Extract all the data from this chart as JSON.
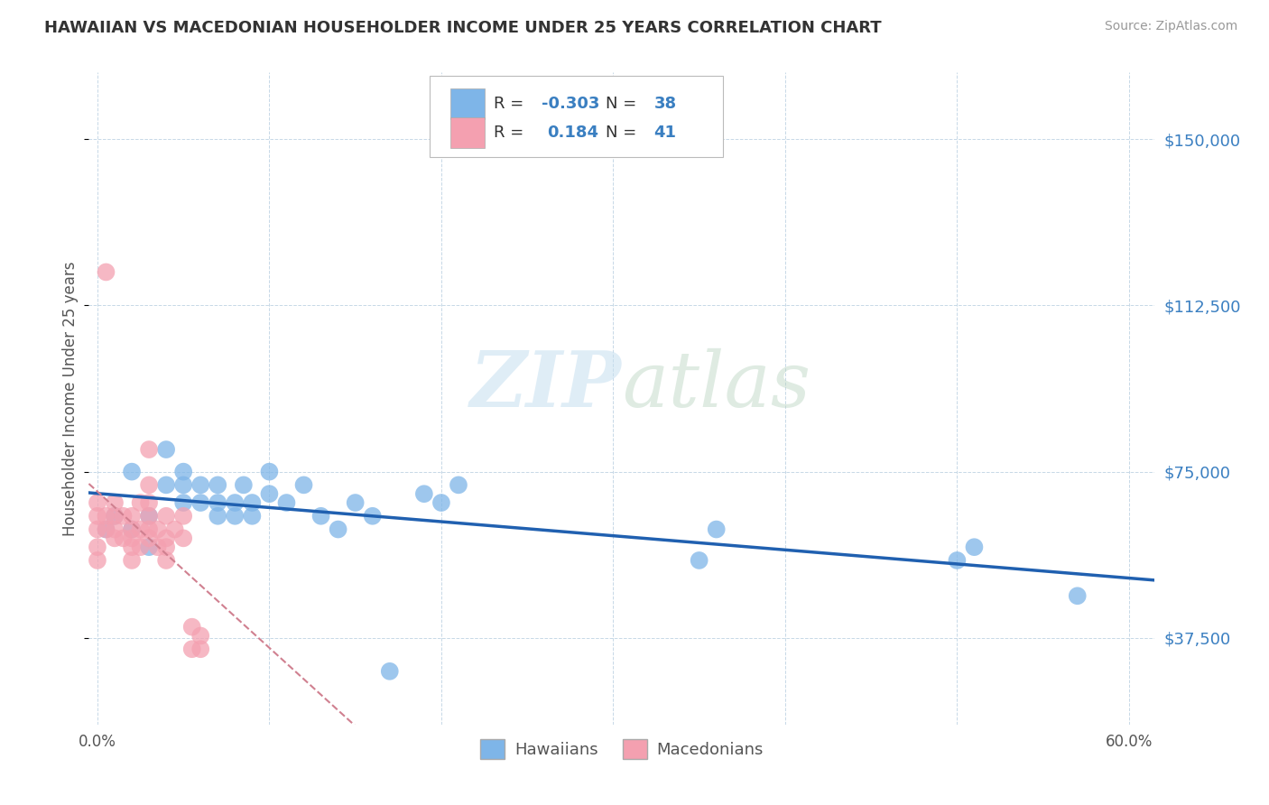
{
  "title": "HAWAIIAN VS MACEDONIAN HOUSEHOLDER INCOME UNDER 25 YEARS CORRELATION CHART",
  "source": "Source: ZipAtlas.com",
  "ylabel_label": "Householder Income Under 25 years",
  "x_ticks": [
    0.0,
    0.1,
    0.2,
    0.3,
    0.4,
    0.5,
    0.6
  ],
  "x_tick_labels": [
    "0.0%",
    "",
    "",
    "",
    "",
    "",
    "60.0%"
  ],
  "y_ticks": [
    37500,
    75000,
    112500,
    150000
  ],
  "y_tick_labels": [
    "$37,500",
    "$75,000",
    "$112,500",
    "$150,000"
  ],
  "xlim": [
    -0.005,
    0.615
  ],
  "ylim": [
    18000,
    165000
  ],
  "hawaiian_r": -0.303,
  "hawaiian_n": 38,
  "macedonian_r": 0.184,
  "macedonian_n": 41,
  "hawaiian_color": "#7eb5e8",
  "macedonian_color": "#f4a0b0",
  "hawaiian_line_color": "#2060b0",
  "macedonian_line_color": "#d08090",
  "hawaiian_x": [
    0.005,
    0.01,
    0.02,
    0.02,
    0.03,
    0.03,
    0.04,
    0.04,
    0.05,
    0.05,
    0.05,
    0.06,
    0.06,
    0.07,
    0.07,
    0.07,
    0.08,
    0.08,
    0.085,
    0.09,
    0.09,
    0.1,
    0.1,
    0.11,
    0.12,
    0.13,
    0.14,
    0.15,
    0.16,
    0.17,
    0.19,
    0.2,
    0.21,
    0.35,
    0.36,
    0.5,
    0.51,
    0.57
  ],
  "hawaiian_y": [
    62000,
    65000,
    62000,
    75000,
    58000,
    65000,
    72000,
    80000,
    68000,
    72000,
    75000,
    68000,
    72000,
    65000,
    68000,
    72000,
    65000,
    68000,
    72000,
    65000,
    68000,
    70000,
    75000,
    68000,
    72000,
    65000,
    62000,
    68000,
    65000,
    30000,
    70000,
    68000,
    72000,
    55000,
    62000,
    55000,
    58000,
    47000
  ],
  "macedonian_x": [
    0.0,
    0.0,
    0.0,
    0.0,
    0.0,
    0.005,
    0.005,
    0.005,
    0.01,
    0.01,
    0.01,
    0.01,
    0.015,
    0.015,
    0.02,
    0.02,
    0.02,
    0.02,
    0.02,
    0.025,
    0.025,
    0.025,
    0.03,
    0.03,
    0.03,
    0.03,
    0.03,
    0.03,
    0.035,
    0.035,
    0.04,
    0.04,
    0.04,
    0.04,
    0.045,
    0.05,
    0.05,
    0.055,
    0.055,
    0.06,
    0.06
  ],
  "macedonian_y": [
    62000,
    65000,
    68000,
    55000,
    58000,
    62000,
    65000,
    120000,
    60000,
    62000,
    65000,
    68000,
    60000,
    65000,
    55000,
    58000,
    60000,
    62000,
    65000,
    58000,
    62000,
    68000,
    60000,
    62000,
    65000,
    68000,
    72000,
    80000,
    58000,
    62000,
    55000,
    58000,
    60000,
    65000,
    62000,
    60000,
    65000,
    35000,
    40000,
    35000,
    38000
  ],
  "legend_r_label": "R = ",
  "legend_n_label": "N = ",
  "watermark_zip": "ZIP",
  "watermark_atlas": "atlas",
  "bottom_legend_hawaiians": "Hawaiians",
  "bottom_legend_macedonians": "Macedonians"
}
